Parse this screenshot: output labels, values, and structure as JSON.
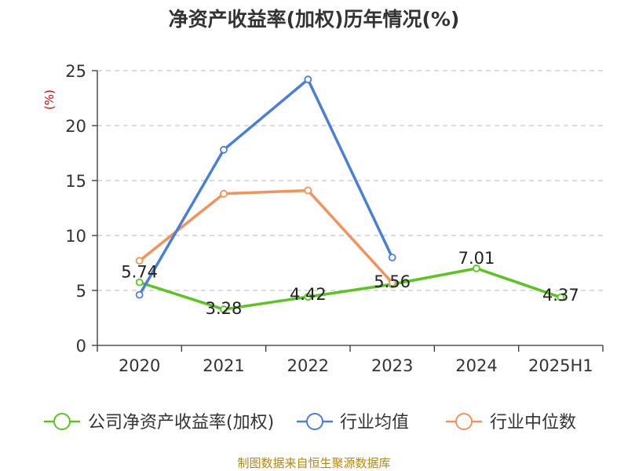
{
  "chart_data": {
    "type": "line",
    "title": "净资产收益率(加权)历年情况(%)",
    "unit_label": "(%)",
    "categories": [
      "2020",
      "2021",
      "2022",
      "2023",
      "2024",
      "2025H1"
    ],
    "ylim": [
      0,
      25
    ],
    "yticks": [
      0,
      5,
      10,
      15,
      20,
      25
    ],
    "grid": true,
    "legend_position": "bottom",
    "series": [
      {
        "name": "公司净资产收益率(加权)",
        "color": "#5ac421",
        "values": [
          5.74,
          3.28,
          4.42,
          5.56,
          7.01,
          4.37
        ],
        "labels": [
          "5.74",
          "3.28",
          "4.42",
          "5.56",
          "7.01",
          "4.37"
        ]
      },
      {
        "name": "行业均值",
        "color": "#4a7fd8",
        "values": [
          4.6,
          17.8,
          24.2,
          8.0,
          null,
          null
        ]
      },
      {
        "name": "行业中位数",
        "color": "#f5915a",
        "values": [
          7.7,
          13.8,
          14.1,
          5.7,
          null,
          null
        ]
      }
    ],
    "source": "制图数据来自恒生聚源数据库"
  }
}
